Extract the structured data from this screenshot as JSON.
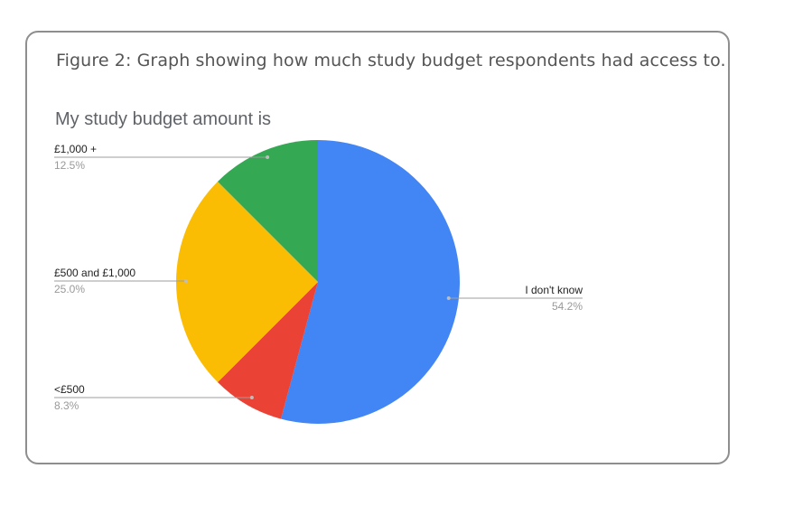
{
  "figure": {
    "caption": "Figure 2: Graph showing how much study budget respondents had access to."
  },
  "chart_data": {
    "type": "pie",
    "title": "My study budget amount is",
    "slices": [
      {
        "label": "I don't know",
        "value": 54.2,
        "pct_label": "54.2%",
        "color": "#4285f4"
      },
      {
        "label": "<£500",
        "value": 8.3,
        "pct_label": "8.3%",
        "color": "#ea4335"
      },
      {
        "label": "£500 and £1,000",
        "value": 25.0,
        "pct_label": "25.0%",
        "color": "#fbbc04"
      },
      {
        "label": "£1,000 +",
        "value": 12.5,
        "pct_label": "12.5%",
        "color": "#34a853"
      }
    ],
    "start_angle": "12 o'clock",
    "direction": "clockwise",
    "legend": "callout labels"
  }
}
